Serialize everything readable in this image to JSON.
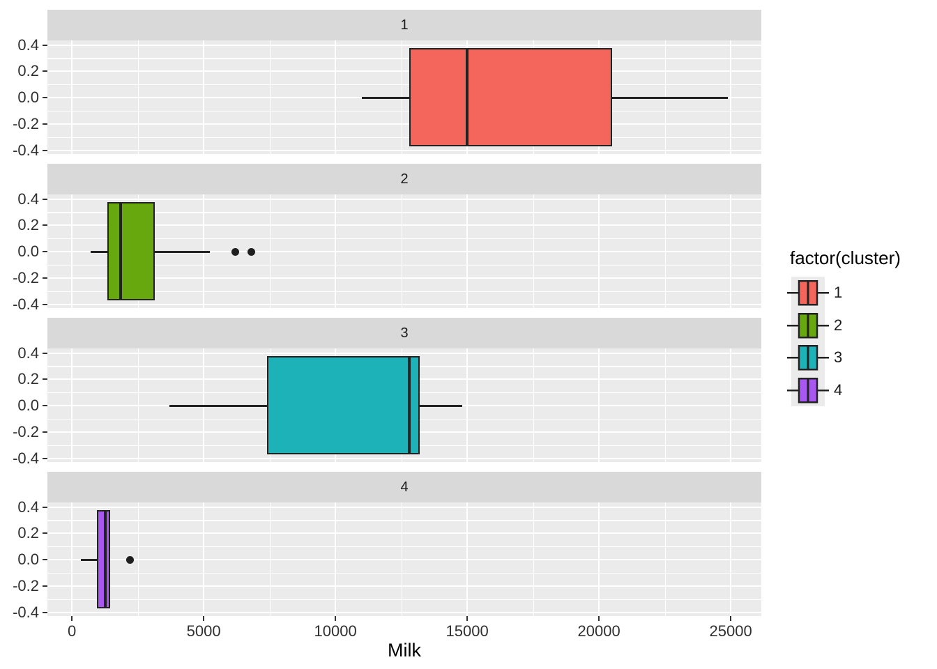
{
  "figure": {
    "background": "#FFFFFF"
  },
  "colors": {
    "panel_bg": "#EBEBEB",
    "strip_bg": "#D9D9D9",
    "grid": "#FFFFFF",
    "box_stroke": "#222222",
    "outlier": "#1F1F1F",
    "tick_text": "#303030"
  },
  "axis": {
    "xlabel": "Milk",
    "x_tick_labels": [
      "0",
      "5000",
      "10000",
      "15000",
      "20000",
      "25000"
    ],
    "y_tick_labels": [
      "0.4",
      "0.2",
      "0.0",
      "-0.2",
      "-0.4"
    ]
  },
  "legend": {
    "title": "factor(cluster)",
    "items": [
      {
        "label": "1",
        "color": "#F4655C"
      },
      {
        "label": "2",
        "color": "#66A80D"
      },
      {
        "label": "3",
        "color": "#1CB2B8"
      },
      {
        "label": "4",
        "color": "#A857F0"
      }
    ]
  },
  "chart_data": {
    "type": "boxplot",
    "orientation": "horizontal",
    "facet_variable": "cluster",
    "title": "",
    "xlabel": "Milk",
    "ylabel": "",
    "x_domain": [
      -930,
      26160
    ],
    "x_ticks": [
      0,
      5000,
      10000,
      15000,
      20000,
      25000
    ],
    "x_minor_ticks": [
      2500,
      7500,
      12500,
      17500,
      22500
    ],
    "y_ticks": [
      0.4,
      0.2,
      0.0,
      -0.2,
      -0.4
    ],
    "y_minor_ticks": [
      0.3,
      0.1,
      -0.1,
      -0.3
    ],
    "grid": true,
    "legend_position": "right",
    "facets": [
      {
        "label": "1",
        "fill": "#F4655C",
        "whisker_min": 11000,
        "q1": 12800,
        "median": 15000,
        "q3": 20500,
        "whisker_max": 24900,
        "outliers": []
      },
      {
        "label": "2",
        "fill": "#66A80D",
        "whisker_min": 700,
        "q1": 1350,
        "median": 1850,
        "q3": 3150,
        "whisker_max": 5240,
        "outliers": [
          6200,
          6800
        ]
      },
      {
        "label": "3",
        "fill": "#1CB2B8",
        "whisker_min": 3700,
        "q1": 7400,
        "median": 12800,
        "q3": 13200,
        "whisker_max": 14800,
        "outliers": []
      },
      {
        "label": "4",
        "fill": "#A857F0",
        "whisker_min": 330,
        "q1": 940,
        "median": 1260,
        "q3": 1450,
        "whisker_max": 1450,
        "outliers": [
          2200
        ]
      }
    ]
  }
}
